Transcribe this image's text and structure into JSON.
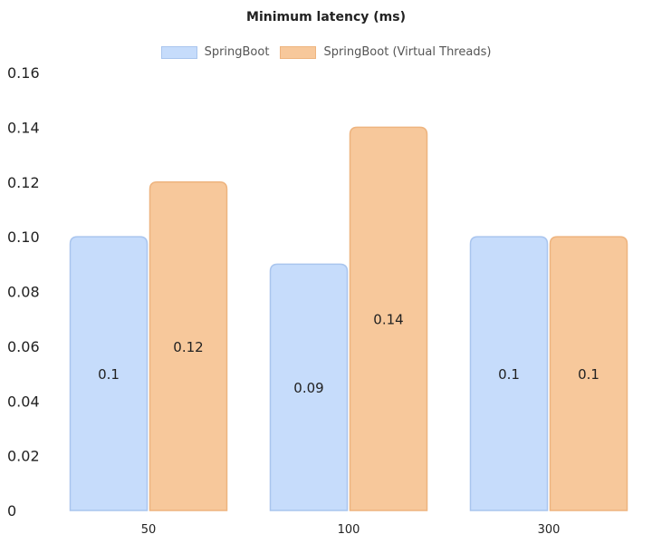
{
  "chart_data": {
    "type": "bar",
    "title": "Minimum latency (ms)",
    "xlabel": "",
    "ylabel": "",
    "categories": [
      "50",
      "100",
      "300"
    ],
    "series": [
      {
        "name": "SpringBoot",
        "values": [
          0.1,
          0.09,
          0.1
        ],
        "labels": [
          "0.1",
          "0.09",
          "0.1"
        ],
        "fill": "#c6dcfb",
        "stroke": "#a9c5ee"
      },
      {
        "name": "SpringBoot (Virtual Threads)",
        "values": [
          0.12,
          0.14,
          0.1
        ],
        "labels": [
          "0.12",
          "0.14",
          "0.1"
        ],
        "fill": "#f7c89b",
        "stroke": "#eeb47f"
      }
    ],
    "ylim": [
      0,
      0.16
    ],
    "yticks": [
      "0",
      "0.02",
      "0.04",
      "0.06",
      "0.08",
      "0.10",
      "0.12",
      "0.14",
      "0.16"
    ],
    "grid": false,
    "legend_position": "top-center"
  }
}
